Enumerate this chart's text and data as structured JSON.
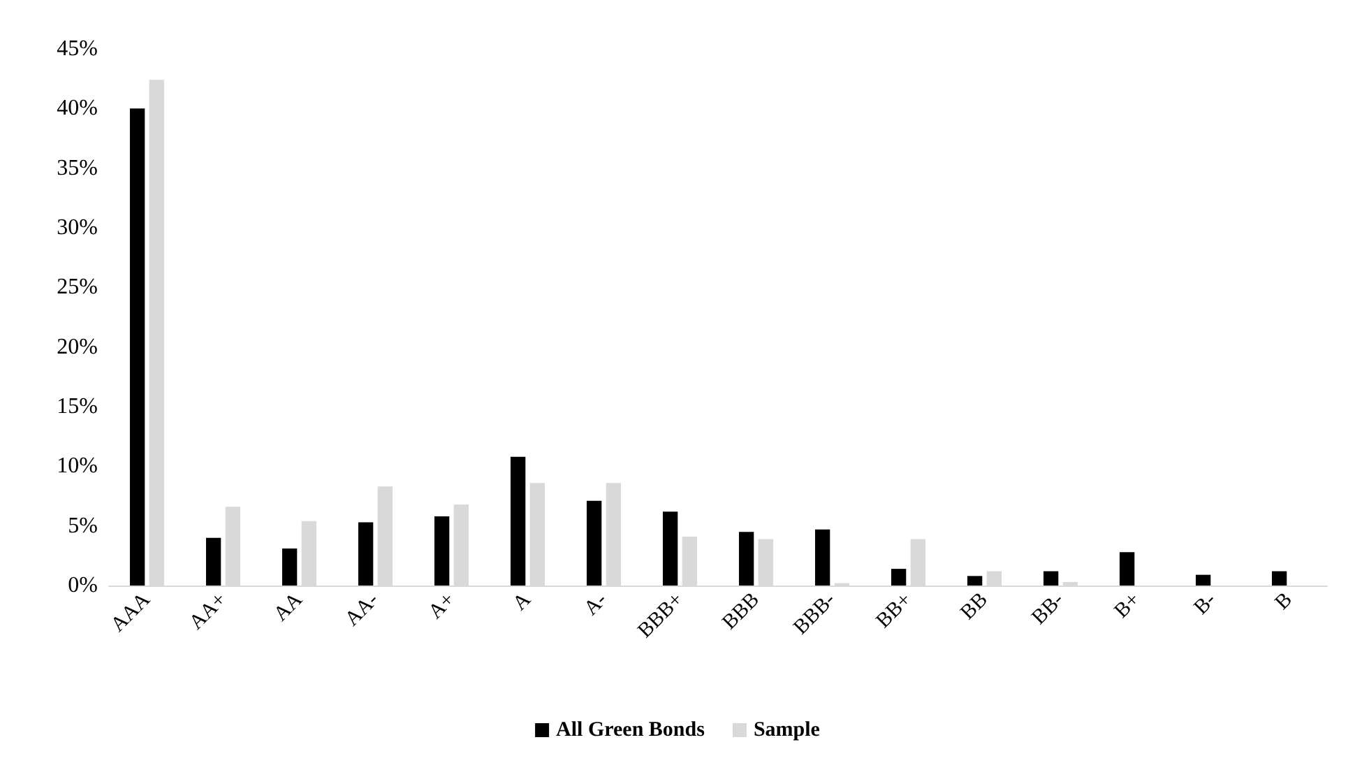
{
  "chart_data": {
    "type": "bar",
    "categories": [
      "AAA",
      "AA+",
      "AA",
      "AA-",
      "A+",
      "A",
      "A-",
      "BBB+",
      "BBB",
      "BBB-",
      "BB+",
      "BB",
      "BB-",
      "B+",
      "B-",
      "B"
    ],
    "series": [
      {
        "name": "All Green Bonds",
        "color": "#000000",
        "values": [
          40.0,
          4.0,
          3.1,
          5.3,
          5.8,
          10.8,
          7.1,
          6.2,
          4.5,
          4.7,
          1.4,
          0.8,
          1.2,
          2.8,
          0.9,
          1.2
        ]
      },
      {
        "name": "Sample",
        "color": "#d9d9d9",
        "values": [
          42.4,
          6.6,
          5.4,
          8.3,
          6.8,
          8.6,
          8.6,
          4.1,
          3.9,
          0.2,
          3.9,
          1.2,
          0.3,
          0,
          0,
          0
        ]
      }
    ],
    "ylim": [
      0,
      45
    ],
    "yticks": [
      {
        "value": 0,
        "label": "0%"
      },
      {
        "value": 5,
        "label": "5%"
      },
      {
        "value": 10,
        "label": "10%"
      },
      {
        "value": 15,
        "label": "15%"
      },
      {
        "value": 20,
        "label": "20%"
      },
      {
        "value": 25,
        "label": "25%"
      },
      {
        "value": 30,
        "label": "30%"
      },
      {
        "value": 35,
        "label": "35%"
      },
      {
        "value": 40,
        "label": "40%"
      },
      {
        "value": 45,
        "label": "45%"
      }
    ],
    "grid": false,
    "legend": "bottom"
  }
}
